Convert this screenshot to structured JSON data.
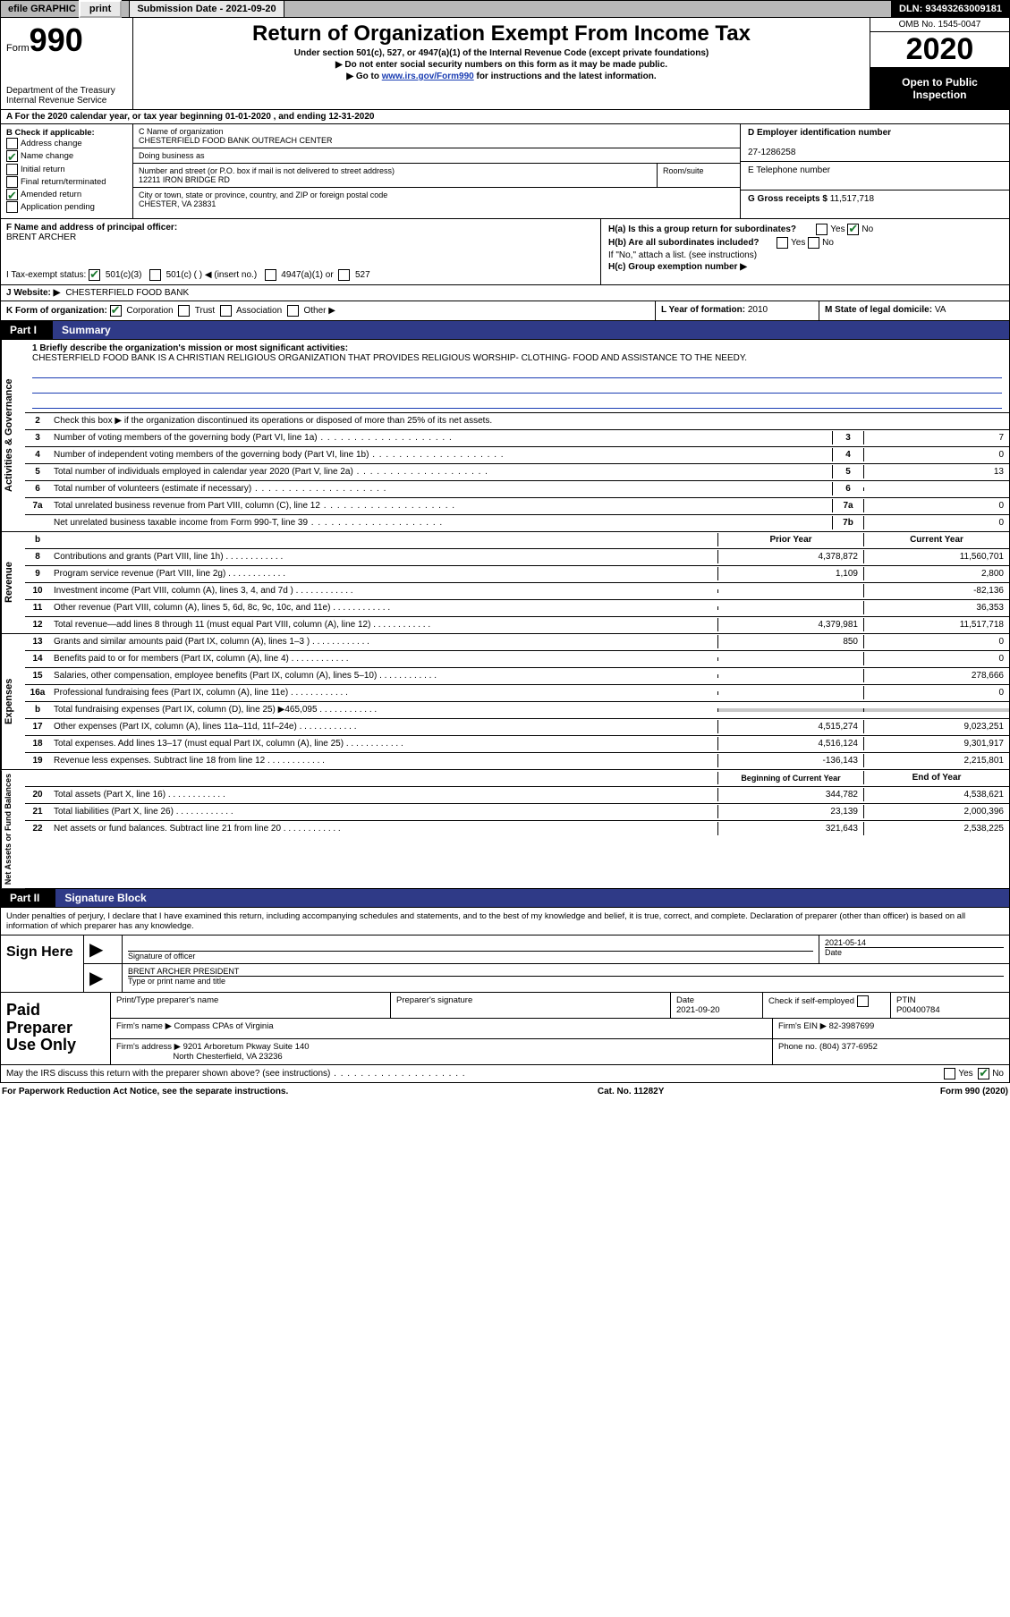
{
  "colors": {
    "link": "#1a3db3",
    "check": "#1a7a2e",
    "partBg": "#2f3a87",
    "shade": "#c8c8c8",
    "topbar": "#b8b8b8"
  },
  "topbar": {
    "efile": "efile GRAPHIC",
    "print": "print",
    "submission": "Submission Date - 2021-09-20",
    "dln": "DLN: 93493263009181"
  },
  "header": {
    "formWord": "Form",
    "formNum": "990",
    "dept": "Department of the Treasury",
    "irs": "Internal Revenue Service",
    "title": "Return of Organization Exempt From Income Tax",
    "sub1": "Under section 501(c), 527, or 4947(a)(1) of the Internal Revenue Code (except private foundations)",
    "sub2": "▶ Do not enter social security numbers on this form as it may be made public.",
    "sub3_pre": "▶ Go to ",
    "sub3_link": "www.irs.gov/Form990",
    "sub3_post": " for instructions and the latest information.",
    "omb": "OMB No. 1545-0047",
    "year": "2020",
    "inspect1": "Open to Public",
    "inspect2": "Inspection"
  },
  "rowA": "A For the 2020 calendar year, or tax year beginning 01-01-2020    , and ending 12-31-2020",
  "colB": {
    "heading": "B Check if applicable:",
    "items": [
      {
        "label": "Address change",
        "checked": false
      },
      {
        "label": "Name change",
        "checked": true
      },
      {
        "label": "Initial return",
        "checked": false
      },
      {
        "label": "Final return/terminated",
        "checked": false
      },
      {
        "label": "Amended return",
        "checked": true
      },
      {
        "label": "Application pending",
        "checked": false
      }
    ]
  },
  "colC": {
    "nameLabel": "C Name of organization",
    "name": "CHESTERFIELD FOOD BANK OUTREACH CENTER",
    "dbaLabel": "Doing business as",
    "dba": "",
    "streetLabel": "Number and street (or P.O. box if mail is not delivered to street address)",
    "street": "12211 IRON BRIDGE RD",
    "roomLabel": "Room/suite",
    "cityLabel": "City or town, state or province, country, and ZIP or foreign postal code",
    "city": "CHESTER, VA  23831"
  },
  "colD": {
    "label": "D Employer identification number",
    "value": "27-1286258"
  },
  "colE": {
    "label": "E Telephone number",
    "value": ""
  },
  "colG": {
    "label": "G Gross receipts $",
    "value": "11,517,718"
  },
  "rowF": {
    "label": "F  Name and address of principal officer:",
    "value": "BRENT ARCHER"
  },
  "rowH": {
    "ha": "H(a)  Is this a group return for subordinates?",
    "ha_yes": "Yes",
    "ha_no": "No",
    "ha_checked": "no",
    "hb": "H(b)  Are all subordinates included?",
    "hb_yes": "Yes",
    "hb_no": "No",
    "hb_note": "If \"No,\" attach a list. (see instructions)",
    "hc": "H(c)  Group exemption number ▶"
  },
  "rowI": {
    "label": "I   Tax-exempt status:",
    "opts": [
      "501(c)(3)",
      "501(c) (  ) ◀ (insert no.)",
      "4947(a)(1) or",
      "527"
    ],
    "checked": 0
  },
  "rowJ": {
    "label": "J   Website: ▶",
    "value": "CHESTERFIELD FOOD BANK"
  },
  "rowK": {
    "label": "K Form of organization:",
    "opts": [
      "Corporation",
      "Trust",
      "Association",
      "Other ▶"
    ],
    "checked": 0
  },
  "rowL": {
    "label": "L Year of formation:",
    "value": "2010"
  },
  "rowM": {
    "label": "M State of legal domicile:",
    "value": "VA"
  },
  "part1": {
    "tab": "Part I",
    "title": "Summary"
  },
  "mission": {
    "label": "1  Briefly describe the organization's mission or most significant activities:",
    "text": "CHESTERFIELD FOOD BANK IS A CHRISTIAN RELIGIOUS ORGANIZATION THAT PROVIDES RELIGIOUS WORSHIP- CLOTHING- FOOD AND ASSISTANCE TO THE NEEDY."
  },
  "actGov": {
    "vert": "Activities & Governance",
    "line2": "Check this box ▶        if the organization discontinued its operations or disposed of more than 25% of its net assets.",
    "rows": [
      {
        "n": "3",
        "t": "Number of voting members of the governing body (Part VI, line 1a)",
        "box": "3",
        "v": "7"
      },
      {
        "n": "4",
        "t": "Number of independent voting members of the governing body (Part VI, line 1b)",
        "box": "4",
        "v": "0"
      },
      {
        "n": "5",
        "t": "Total number of individuals employed in calendar year 2020 (Part V, line 2a)",
        "box": "5",
        "v": "13"
      },
      {
        "n": "6",
        "t": "Total number of volunteers (estimate if necessary)",
        "box": "6",
        "v": ""
      },
      {
        "n": "7a",
        "t": "Total unrelated business revenue from Part VIII, column (C), line 12",
        "box": "7a",
        "v": "0"
      },
      {
        "n": "",
        "t": "Net unrelated business taxable income from Form 990-T, line 39",
        "box": "7b",
        "v": "0"
      }
    ]
  },
  "twoColHead": {
    "prior": "Prior Year",
    "curr": "Current Year"
  },
  "revenue": {
    "vert": "Revenue",
    "rows": [
      {
        "n": "8",
        "t": "Contributions and grants (Part VIII, line 1h)",
        "p": "4,378,872",
        "c": "11,560,701"
      },
      {
        "n": "9",
        "t": "Program service revenue (Part VIII, line 2g)",
        "p": "1,109",
        "c": "2,800"
      },
      {
        "n": "10",
        "t": "Investment income (Part VIII, column (A), lines 3, 4, and 7d )",
        "p": "",
        "c": "-82,136"
      },
      {
        "n": "11",
        "t": "Other revenue (Part VIII, column (A), lines 5, 6d, 8c, 9c, 10c, and 11e)",
        "p": "",
        "c": "36,353"
      },
      {
        "n": "12",
        "t": "Total revenue—add lines 8 through 11 (must equal Part VIII, column (A), line 12)",
        "p": "4,379,981",
        "c": "11,517,718"
      }
    ]
  },
  "expenses": {
    "vert": "Expenses",
    "rows": [
      {
        "n": "13",
        "t": "Grants and similar amounts paid (Part IX, column (A), lines 1–3 )",
        "p": "850",
        "c": "0"
      },
      {
        "n": "14",
        "t": "Benefits paid to or for members (Part IX, column (A), line 4)",
        "p": "",
        "c": "0"
      },
      {
        "n": "15",
        "t": "Salaries, other compensation, employee benefits (Part IX, column (A), lines 5–10)",
        "p": "",
        "c": "278,666"
      },
      {
        "n": "16a",
        "t": "Professional fundraising fees (Part IX, column (A), line 11e)",
        "p": "",
        "c": "0"
      },
      {
        "n": "b",
        "t": "Total fundraising expenses (Part IX, column (D), line 25) ▶465,095",
        "p": "SHADE",
        "c": "SHADE"
      },
      {
        "n": "17",
        "t": "Other expenses (Part IX, column (A), lines 11a–11d, 11f–24e)",
        "p": "4,515,274",
        "c": "9,023,251"
      },
      {
        "n": "18",
        "t": "Total expenses. Add lines 13–17 (must equal Part IX, column (A), line 25)",
        "p": "4,516,124",
        "c": "9,301,917"
      },
      {
        "n": "19",
        "t": "Revenue less expenses. Subtract line 18 from line 12",
        "p": "-136,143",
        "c": "2,215,801"
      }
    ]
  },
  "netHead": {
    "prior": "Beginning of Current Year",
    "curr": "End of Year"
  },
  "net": {
    "vert": "Net Assets or Fund Balances",
    "rows": [
      {
        "n": "20",
        "t": "Total assets (Part X, line 16)",
        "p": "344,782",
        "c": "4,538,621"
      },
      {
        "n": "21",
        "t": "Total liabilities (Part X, line 26)",
        "p": "23,139",
        "c": "2,000,396"
      },
      {
        "n": "22",
        "t": "Net assets or fund balances. Subtract line 21 from line 20",
        "p": "321,643",
        "c": "2,538,225"
      }
    ]
  },
  "part2": {
    "tab": "Part II",
    "title": "Signature Block"
  },
  "penalties": "Under penalties of perjury, I declare that I have examined this return, including accompanying schedules and statements, and to the best of my knowledge and belief, it is true, correct, and complete. Declaration of preparer (other than officer) is based on all information of which preparer has any knowledge.",
  "sign": {
    "left": "Sign Here",
    "sigOfficer": "Signature of officer",
    "date": "2021-05-14",
    "dateLabel": "Date",
    "name": "BRENT ARCHER  PRESIDENT",
    "nameLabel": "Type or print name and title"
  },
  "paid": {
    "left": "Paid Preparer Use Only",
    "h1": "Print/Type preparer's name",
    "h2": "Preparer's signature",
    "h3": "Date",
    "h3v": "2021-09-20",
    "h4": "Check        if self-employed",
    "h5": "PTIN",
    "h5v": "P00400784",
    "firmName": "Firm's name     ▶",
    "firmNameV": "Compass CPAs of Virginia",
    "firmEin": "Firm's EIN ▶",
    "firmEinV": "82-3987699",
    "firmAddr": "Firm's address ▶",
    "firmAddrV1": "9201 Arboretum Pkway Suite 140",
    "firmAddrV2": "North Chesterfield, VA  23236",
    "phone": "Phone no.",
    "phoneV": "(804) 377-6952"
  },
  "discuss": {
    "text": "May the IRS discuss this return with the preparer shown above? (see instructions)",
    "yes": "Yes",
    "no": "No",
    "checked": "no"
  },
  "footer": {
    "left": "For Paperwork Reduction Act Notice, see the separate instructions.",
    "mid": "Cat. No. 11282Y",
    "right": "Form 990 (2020)"
  }
}
